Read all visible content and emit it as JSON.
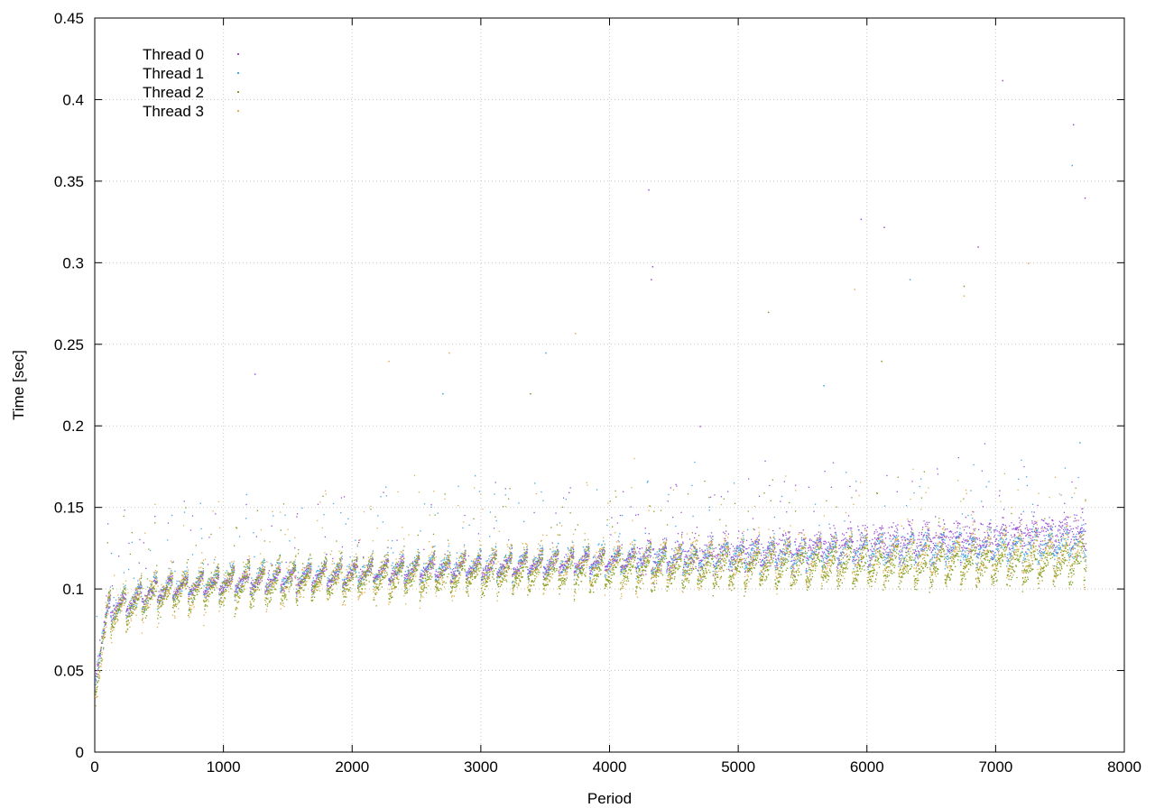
{
  "chart_data": {
    "type": "scatter",
    "xlabel": "Period",
    "ylabel": "Time [sec]",
    "xlim": [
      0,
      8000
    ],
    "ylim": [
      0,
      0.45
    ],
    "xticks": [
      "0",
      "1000",
      "2000",
      "3000",
      "4000",
      "5000",
      "6000",
      "7000",
      "8000"
    ],
    "yticks": [
      "0",
      "0.05",
      "0.1",
      "0.15",
      "0.2",
      "0.25",
      "0.3",
      "0.35",
      "0.4",
      "0.45"
    ],
    "grid": true,
    "legend_position": "top-left",
    "series": [
      {
        "name": "Thread 0",
        "color": "#9b4fd8",
        "trend": [
          [
            0,
            0.05
          ],
          [
            100,
            0.088
          ],
          [
            500,
            0.1
          ],
          [
            1000,
            0.104
          ],
          [
            2000,
            0.11
          ],
          [
            3000,
            0.114
          ],
          [
            4000,
            0.118
          ],
          [
            5000,
            0.122
          ],
          [
            6000,
            0.128
          ],
          [
            7000,
            0.132
          ],
          [
            7700,
            0.136
          ]
        ],
        "outliers": [
          [
            1240,
            0.232
          ],
          [
            4300,
            0.345
          ],
          [
            4330,
            0.298
          ],
          [
            5950,
            0.327
          ],
          [
            6130,
            0.322
          ],
          [
            7050,
            0.412
          ],
          [
            7600,
            0.385
          ],
          [
            7690,
            0.34
          ],
          [
            4700,
            0.2
          ],
          [
            4320,
            0.29
          ],
          [
            6860,
            0.31
          ]
        ]
      },
      {
        "name": "Thread 1",
        "color": "#3fa9e0",
        "trend": [
          [
            0,
            0.05
          ],
          [
            100,
            0.088
          ],
          [
            500,
            0.1
          ],
          [
            1000,
            0.105
          ],
          [
            2000,
            0.111
          ],
          [
            3000,
            0.115
          ],
          [
            4000,
            0.118
          ],
          [
            5000,
            0.121
          ],
          [
            6000,
            0.124
          ],
          [
            7000,
            0.126
          ],
          [
            7700,
            0.128
          ]
        ],
        "outliers": [
          [
            5660,
            0.225
          ],
          [
            3500,
            0.245
          ],
          [
            2700,
            0.22
          ],
          [
            7590,
            0.36
          ],
          [
            6330,
            0.29
          ],
          [
            7650,
            0.19
          ]
        ]
      },
      {
        "name": "Thread 2",
        "color": "#7f9f1f",
        "trend": [
          [
            0,
            0.045
          ],
          [
            100,
            0.085
          ],
          [
            500,
            0.097
          ],
          [
            1000,
            0.102
          ],
          [
            2000,
            0.107
          ],
          [
            3000,
            0.11
          ],
          [
            4000,
            0.112
          ],
          [
            5000,
            0.113
          ],
          [
            6000,
            0.114
          ],
          [
            7000,
            0.115
          ],
          [
            7700,
            0.116
          ]
        ],
        "outliers": [
          [
            6750,
            0.286
          ],
          [
            6110,
            0.24
          ],
          [
            5230,
            0.27
          ],
          [
            3380,
            0.22
          ]
        ]
      },
      {
        "name": "Thread 3",
        "color": "#e0b050",
        "trend": [
          [
            0,
            0.045
          ],
          [
            100,
            0.085
          ],
          [
            500,
            0.098
          ],
          [
            1000,
            0.103
          ],
          [
            2000,
            0.108
          ],
          [
            3000,
            0.112
          ],
          [
            4000,
            0.115
          ],
          [
            5000,
            0.117
          ],
          [
            6000,
            0.119
          ],
          [
            7000,
            0.12
          ],
          [
            7700,
            0.122
          ]
        ],
        "outliers": [
          [
            2280,
            0.24
          ],
          [
            2750,
            0.245
          ],
          [
            5900,
            0.284
          ],
          [
            3730,
            0.257
          ],
          [
            6750,
            0.28
          ],
          [
            7250,
            0.3
          ]
        ]
      }
    ]
  }
}
